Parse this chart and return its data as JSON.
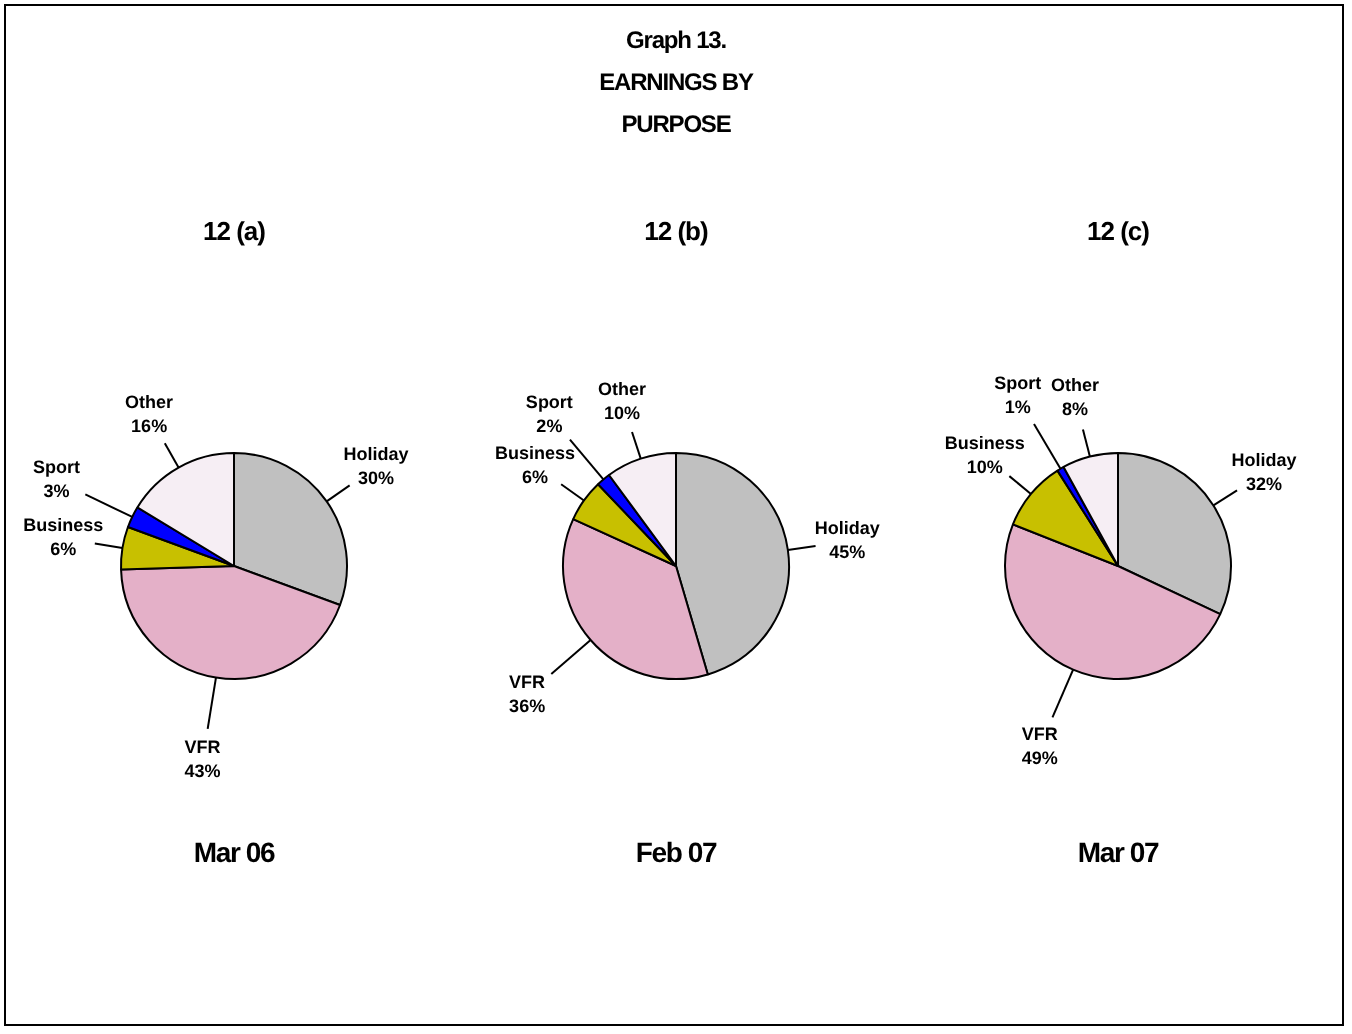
{
  "chart_data": [
    {
      "type": "pie",
      "title": "12 (a)",
      "xlabel": "Mar 06",
      "annotations": [
        "Graph 13.\nEARNINGS BY\nPURPOSE"
      ],
      "categories": [
        "Holiday",
        "VFR",
        "Business",
        "Sport",
        "Other"
      ],
      "values": [
        30,
        43,
        6,
        3,
        16
      ],
      "value_labels": [
        "30%",
        "43%",
        "6%",
        "3%",
        "16%"
      ],
      "colors": [
        "#c0c0c0",
        "#e4b0c8",
        "#c8c000",
        "#0000ff",
        "#f6eef4"
      ],
      "legend": false
    },
    {
      "type": "pie",
      "title": "12 (b)",
      "xlabel": "Feb 07",
      "categories": [
        "Holiday",
        "VFR",
        "Business",
        "Sport",
        "Other"
      ],
      "values": [
        45,
        36,
        6,
        2,
        10
      ],
      "value_labels": [
        "45%",
        "36%",
        "6%",
        "2%",
        "10%"
      ],
      "colors": [
        "#c0c0c0",
        "#e4b0c8",
        "#c8c000",
        "#0000ff",
        "#f6eef4"
      ],
      "legend": false
    },
    {
      "type": "pie",
      "title": "12 (c)",
      "xlabel": "Mar 07",
      "categories": [
        "Holiday",
        "VFR",
        "Business",
        "Sport",
        "Other"
      ],
      "values": [
        32,
        49,
        10,
        1,
        8
      ],
      "value_labels": [
        "32%",
        "49%",
        "10%",
        "1%",
        "8%"
      ],
      "colors": [
        "#c0c0c0",
        "#e4b0c8",
        "#c8c000",
        "#0000ff",
        "#f6eef4"
      ],
      "legend": false
    }
  ]
}
